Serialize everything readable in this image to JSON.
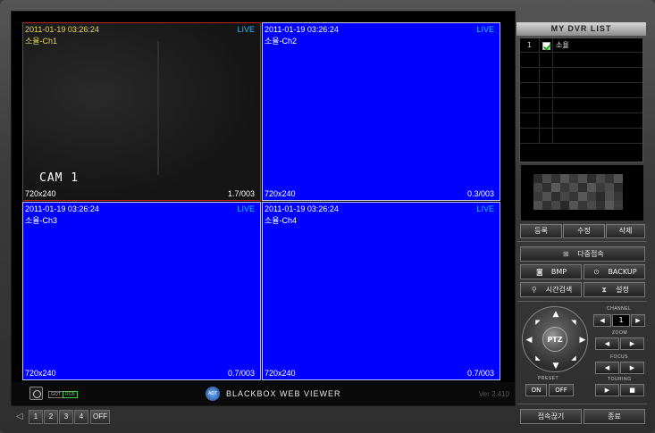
{
  "channels": [
    {
      "timestamp": "2011-01-19 03:26:24",
      "name": "소율-Ch1",
      "live": "LIVE",
      "resolution": "720x240",
      "fps": "1.7/003",
      "overlay": "CAM 1"
    },
    {
      "timestamp": "2011-01-19 03:26:24",
      "name": "소율-Ch2",
      "live": "LIVE",
      "resolution": "720x240",
      "fps": "0.3/003"
    },
    {
      "timestamp": "2011-01-19 03:26:24",
      "name": "소율-Ch3",
      "live": "LIVE",
      "resolution": "720x240",
      "fps": "0.7/003"
    },
    {
      "timestamp": "2011-01-19 03:26:24",
      "name": "소율-Ch4",
      "live": "LIVE",
      "resolution": "720x240",
      "fps": "0.7/003"
    }
  ],
  "footer": {
    "brand_logo": "ADT",
    "brand": "BLACKBOX WEB VIEWER",
    "version": "Ver 2.410",
    "badge_got": "GOT",
    "badge_rgb": "RGB"
  },
  "split_buttons": [
    "1",
    "2",
    "3",
    "4",
    "OFF"
  ],
  "dvr_list": {
    "title": "MY DVR LIST",
    "items": [
      {
        "index": "1",
        "checked": true,
        "name": "소율"
      }
    ]
  },
  "dvr_actions": {
    "register": "등록",
    "edit": "수정",
    "delete": "삭제"
  },
  "actions": {
    "multi_connect": "다중접속",
    "bmp": "BMP",
    "backup": "BACKUP",
    "time_search": "시간검색",
    "settings": "설정"
  },
  "ptz": {
    "label": "PTZ",
    "channel_label": "CHANNEL",
    "channel_value": "1",
    "zoom_label": "ZOOM",
    "focus_label": "FOCUS",
    "touring_label": "TOURING",
    "preset_label": "PRESET",
    "preset_on": "ON",
    "preset_off": "OFF"
  },
  "bottom_actions": {
    "disconnect": "접속끊기",
    "exit": "종료"
  },
  "colors": {
    "video_blue": "#0000ff",
    "live": "#18c8ff",
    "active_border": "#c02020"
  }
}
